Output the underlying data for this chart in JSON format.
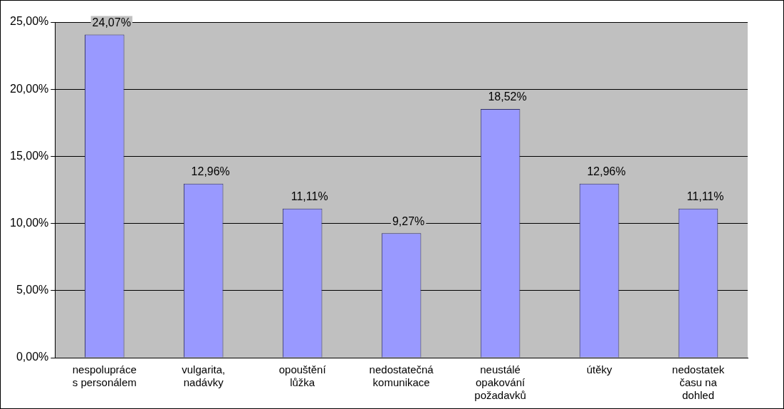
{
  "chart_data": {
    "type": "bar",
    "categories": [
      "nespolupráce s personálem",
      "vulgarita, nadávky",
      "opouštění lůžka",
      "nedostatečná komunikace",
      "neustálé opakování požadavků",
      "útěky",
      "nedostatek času na dohled"
    ],
    "values": [
      24.07,
      12.96,
      11.11,
      9.27,
      18.52,
      12.96,
      11.11
    ],
    "value_labels": [
      "24,07%",
      "12,96%",
      "11,11%",
      "9,27%",
      "18,52%",
      "12,96%",
      "11,11%"
    ],
    "color": "#9999ff",
    "ylim": [
      0,
      25
    ],
    "yticks": [
      {
        "value": 0,
        "label": "0,00%"
      },
      {
        "value": 5,
        "label": "5,00%"
      },
      {
        "value": 10,
        "label": "10,00%"
      },
      {
        "value": 15,
        "label": "15,00%"
      },
      {
        "value": 20,
        "label": "20,00%"
      },
      {
        "value": 25,
        "label": "25,00%"
      }
    ],
    "grid": "y",
    "legend": false
  }
}
